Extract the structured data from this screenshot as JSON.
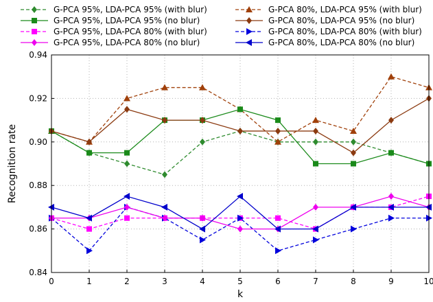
{
  "chart_data": {
    "type": "line",
    "xlabel": "k",
    "ylabel": "Recognition rate",
    "xlim": [
      0,
      10
    ],
    "ylim": [
      0.84,
      0.94
    ],
    "x": [
      0,
      1,
      2,
      3,
      4,
      5,
      6,
      7,
      8,
      9,
      10
    ],
    "x_tick_labels": [
      "0",
      "1",
      "2",
      "3",
      "4",
      "5",
      "6",
      "7",
      "8",
      "9",
      "10"
    ],
    "y_ticks": [
      0.84,
      0.86,
      0.88,
      0.9,
      0.92,
      0.94
    ],
    "y_tick_labels": [
      "0.84",
      "0.86",
      "0.88",
      "0.90",
      "0.92",
      "0.94"
    ],
    "grid": true,
    "legend_position": "top",
    "series": [
      {
        "name": "G-PCA 95%, LDA-PCA 95% (with blur)",
        "color": "#2e8b2e",
        "dash": "dashed",
        "marker": "diamond",
        "values": [
          0.905,
          0.895,
          0.89,
          0.885,
          0.9,
          0.905,
          0.9,
          0.9,
          0.9,
          0.895,
          0.89
        ]
      },
      {
        "name": "G-PCA 80%, LDA-PCA 95% (with blur)",
        "color": "#a0400a",
        "dash": "dashed",
        "marker": "triangle-up",
        "values": [
          0.905,
          0.9,
          0.92,
          0.925,
          0.925,
          0.915,
          0.9,
          0.91,
          0.905,
          0.93,
          0.925
        ]
      },
      {
        "name": "G-PCA 95%, LDA-PCA 95% (no blur)",
        "color": "#1a8a1a",
        "dash": "solid",
        "marker": "square",
        "values": [
          0.905,
          0.895,
          0.895,
          0.91,
          0.91,
          0.915,
          0.91,
          0.89,
          0.89,
          0.895,
          0.89
        ]
      },
      {
        "name": "G-PCA 80%, LDA-PCA 95% (no blur)",
        "color": "#8b3a10",
        "dash": "solid",
        "marker": "diamond",
        "values": [
          0.905,
          0.9,
          0.915,
          0.91,
          0.91,
          0.905,
          0.905,
          0.905,
          0.895,
          0.91,
          0.92
        ]
      },
      {
        "name": "G-PCA 95%, LDA-PCA 80% (with blur)",
        "color": "#ff00ff",
        "dash": "dashed",
        "marker": "square",
        "values": [
          0.865,
          0.86,
          0.865,
          0.865,
          0.865,
          0.865,
          0.865,
          0.86,
          0.87,
          0.87,
          0.875
        ]
      },
      {
        "name": "G-PCA 80%, LDA-PCA 80% (with blur)",
        "color": "#0000dd",
        "dash": "dashed",
        "marker": "triangle-right",
        "values": [
          0.865,
          0.85,
          0.87,
          0.865,
          0.855,
          0.865,
          0.85,
          0.855,
          0.86,
          0.865,
          0.865
        ]
      },
      {
        "name": "G-PCA 95%, LDA-PCA 80% (no blur)",
        "color": "#ee00ee",
        "dash": "solid",
        "marker": "diamond",
        "values": [
          0.865,
          0.865,
          0.87,
          0.865,
          0.865,
          0.86,
          0.86,
          0.87,
          0.87,
          0.875,
          0.87
        ]
      },
      {
        "name": "G-PCA 80%, LDA-PCA 80% (no blur)",
        "color": "#0000cc",
        "dash": "solid",
        "marker": "triangle-left",
        "values": [
          0.87,
          0.865,
          0.875,
          0.87,
          0.86,
          0.875,
          0.86,
          0.86,
          0.87,
          0.87,
          0.87
        ]
      }
    ]
  }
}
